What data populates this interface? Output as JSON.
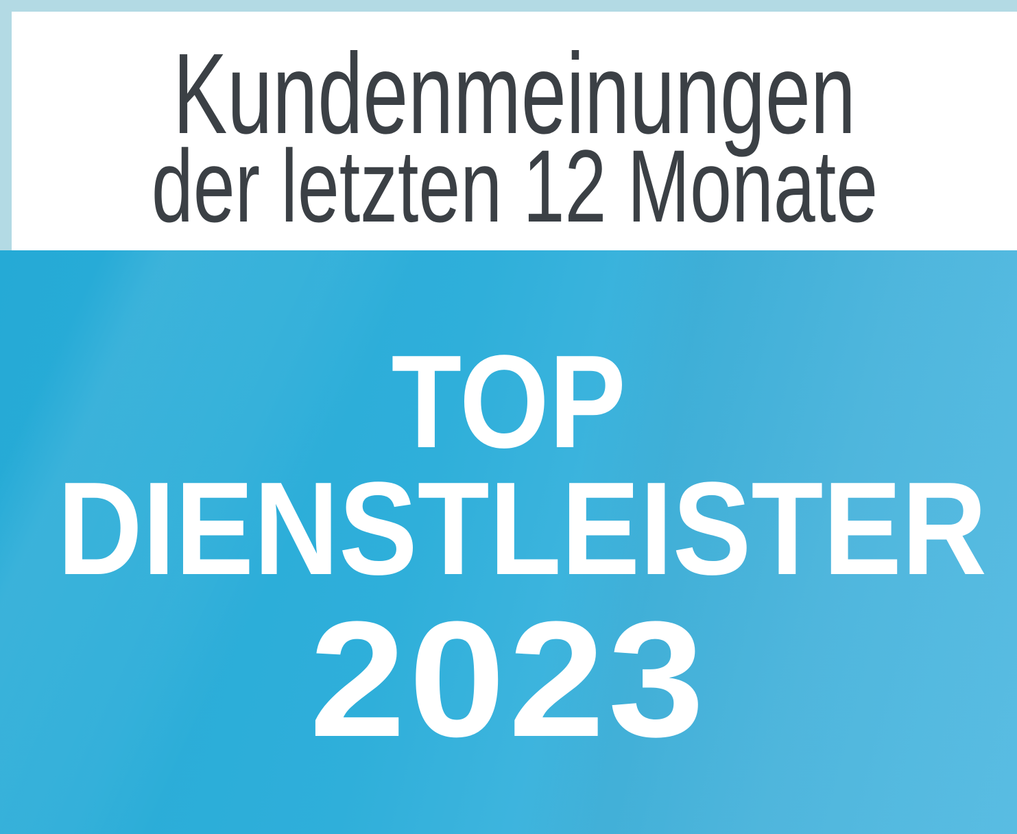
{
  "badge": {
    "header": {
      "line1": "Kundenmeinungen",
      "line2": "der letzten 12 Monate"
    },
    "award": {
      "line1": "TOP",
      "line2": "DIENSTLEISTER",
      "year": "2023"
    },
    "colors": {
      "frame": "#b3dae4",
      "panel": "#ffffff",
      "header_text": "#3b4045",
      "award_text": "#ffffff",
      "blue_start": "#25aad6",
      "blue_end": "#5cc1e7"
    }
  }
}
